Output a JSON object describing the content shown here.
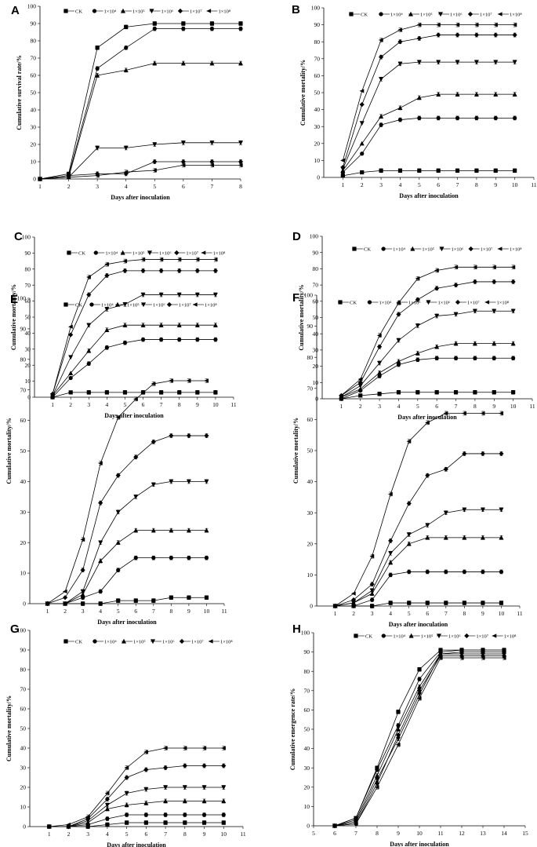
{
  "figure": {
    "legend_labels": [
      "CK",
      "1×10⁴",
      "1×10⁵",
      "1×10⁶",
      "1×10⁷",
      "1×10⁸"
    ]
  },
  "chart_data": [
    {
      "panel": "A",
      "type": "line",
      "xlabel": "Days after inoculation",
      "ylabel": "Cumulative survival rate/%",
      "xlim": [
        1,
        8
      ],
      "ylim": [
        0,
        100
      ],
      "x_ticks": [
        1,
        2,
        3,
        4,
        5,
        6,
        7,
        8
      ],
      "y_ticks": [
        0,
        10,
        20,
        30,
        40,
        50,
        60,
        70,
        80,
        90,
        100
      ],
      "x": [
        1,
        2,
        3,
        4,
        5,
        6,
        7,
        8
      ],
      "series": [
        {
          "name": "CK",
          "values": [
            0,
            3,
            76,
            88,
            90,
            90,
            90,
            90
          ]
        },
        {
          "name": "1×10⁴",
          "values": [
            0,
            2,
            64,
            76,
            87,
            87,
            87,
            87
          ]
        },
        {
          "name": "1×10⁵",
          "values": [
            0,
            1,
            60,
            63,
            67,
            67,
            67,
            67
          ]
        },
        {
          "name": "1×10⁶",
          "values": [
            0,
            1,
            18,
            18,
            20,
            21,
            21,
            21
          ]
        },
        {
          "name": "1×10⁷",
          "values": [
            0,
            2,
            3,
            3,
            10,
            10,
            10,
            10
          ]
        },
        {
          "name": "1×10⁸",
          "values": [
            0,
            1,
            2,
            4,
            5,
            8,
            8,
            8
          ]
        }
      ]
    },
    {
      "panel": "B",
      "type": "line",
      "xlabel": "Days after inoculation",
      "ylabel": "Cumulative mortality/%",
      "xlim": [
        0,
        11
      ],
      "ylim": [
        0,
        100
      ],
      "x_ticks": [
        1,
        2,
        3,
        4,
        5,
        6,
        7,
        8,
        9,
        10,
        11
      ],
      "y_ticks": [
        0,
        10,
        20,
        30,
        40,
        50,
        60,
        70,
        80,
        90,
        100
      ],
      "x": [
        1,
        2,
        3,
        4,
        5,
        6,
        7,
        8,
        9,
        10
      ],
      "series": [
        {
          "name": "CK",
          "values": [
            1,
            3,
            4,
            4,
            4,
            4,
            4,
            4,
            4,
            4
          ]
        },
        {
          "name": "1×10⁴",
          "values": [
            3,
            14,
            31,
            34,
            35,
            35,
            35,
            35,
            35,
            35
          ]
        },
        {
          "name": "1×10⁵",
          "values": [
            4,
            20,
            36,
            41,
            47,
            49,
            49,
            49,
            49,
            49
          ]
        },
        {
          "name": "1×10⁶",
          "values": [
            5,
            32,
            58,
            67,
            68,
            68,
            68,
            68,
            68,
            68
          ]
        },
        {
          "name": "1×10⁷",
          "values": [
            6,
            43,
            71,
            80,
            82,
            84,
            84,
            84,
            84,
            84
          ]
        },
        {
          "name": "1×10⁸",
          "values": [
            10,
            51,
            81,
            87,
            90,
            90,
            90,
            90,
            90,
            90
          ]
        }
      ]
    },
    {
      "panel": "C",
      "type": "line",
      "xlabel": "Days after inoculation",
      "ylabel": "Cumulative mortality/%",
      "xlim": [
        0,
        11
      ],
      "ylim": [
        0,
        100
      ],
      "x_ticks": [
        1,
        2,
        3,
        4,
        5,
        6,
        7,
        8,
        9,
        10,
        11
      ],
      "y_ticks": [
        0,
        10,
        20,
        30,
        40,
        50,
        60,
        70,
        80,
        90,
        100
      ],
      "x": [
        1,
        2,
        3,
        4,
        5,
        6,
        7,
        8,
        9,
        10
      ],
      "series": [
        {
          "name": "CK",
          "values": [
            0,
            3,
            3,
            3,
            3,
            3,
            3,
            3,
            3,
            3
          ]
        },
        {
          "name": "1×10⁴",
          "values": [
            0,
            12,
            21,
            31,
            34,
            36,
            36,
            36,
            36,
            36
          ]
        },
        {
          "name": "1×10⁵",
          "values": [
            1,
            15,
            29,
            42,
            45,
            45,
            45,
            45,
            45,
            45
          ]
        },
        {
          "name": "1×10⁶",
          "values": [
            1,
            25,
            45,
            55,
            58,
            64,
            64,
            64,
            64,
            64
          ]
        },
        {
          "name": "1×10⁷",
          "values": [
            2,
            39,
            64,
            76,
            79,
            79,
            79,
            79,
            79,
            79
          ]
        },
        {
          "name": "1×10⁸",
          "values": [
            2,
            44,
            75,
            83,
            85,
            86,
            86,
            86,
            86,
            86
          ]
        }
      ]
    },
    {
      "panel": "D",
      "type": "line",
      "xlabel": "Days after inoculation",
      "ylabel": "Cumulative mortality/%",
      "xlim": [
        0,
        11
      ],
      "ylim": [
        0,
        100
      ],
      "x_ticks": [
        1,
        2,
        3,
        4,
        5,
        6,
        7,
        8,
        9,
        10,
        11
      ],
      "y_ticks": [
        0,
        10,
        20,
        30,
        40,
        50,
        60,
        70,
        80,
        90,
        100
      ],
      "x": [
        1,
        2,
        3,
        4,
        5,
        6,
        7,
        8,
        9,
        10
      ],
      "series": [
        {
          "name": "CK",
          "values": [
            0,
            2,
            3,
            4,
            4,
            4,
            4,
            4,
            4,
            4
          ]
        },
        {
          "name": "1×10⁴",
          "values": [
            0,
            5,
            14,
            21,
            24,
            25,
            25,
            25,
            25,
            25
          ]
        },
        {
          "name": "1×10⁵",
          "values": [
            1,
            6,
            16,
            23,
            28,
            32,
            34,
            34,
            34,
            34
          ]
        },
        {
          "name": "1×10⁶",
          "values": [
            1,
            8,
            22,
            36,
            45,
            51,
            52,
            54,
            54,
            54
          ]
        },
        {
          "name": "1×10⁷",
          "values": [
            2,
            10,
            32,
            52,
            61,
            68,
            70,
            72,
            72,
            72
          ]
        },
        {
          "name": "1×10⁸",
          "values": [
            2,
            12,
            39,
            59,
            74,
            79,
            81,
            81,
            81,
            81
          ]
        }
      ]
    },
    {
      "panel": "E",
      "type": "line",
      "xlabel": "Days after inoculation",
      "ylabel": "Cumulative mortality/%",
      "xlim": [
        0,
        11
      ],
      "ylim": [
        0,
        100
      ],
      "x_ticks": [
        1,
        2,
        3,
        4,
        5,
        6,
        7,
        8,
        9,
        10,
        11
      ],
      "y_ticks": [
        0,
        10,
        20,
        30,
        40,
        50,
        60,
        70,
        80,
        90,
        100
      ],
      "x": [
        1,
        2,
        3,
        4,
        5,
        6,
        7,
        8,
        9,
        10
      ],
      "series": [
        {
          "name": "CK",
          "values": [
            0,
            0,
            0,
            0,
            1,
            1,
            1,
            2,
            2,
            2
          ]
        },
        {
          "name": "1×10⁴",
          "values": [
            0,
            0,
            2,
            4,
            11,
            15,
            15,
            15,
            15,
            15
          ]
        },
        {
          "name": "1×10⁵",
          "values": [
            0,
            0,
            3,
            14,
            20,
            24,
            24,
            24,
            24,
            24
          ]
        },
        {
          "name": "1×10⁶",
          "values": [
            0,
            0,
            4,
            20,
            30,
            35,
            39,
            40,
            40,
            40
          ]
        },
        {
          "name": "1×10⁷",
          "values": [
            0,
            2,
            11,
            33,
            42,
            48,
            53,
            55,
            55,
            55
          ]
        },
        {
          "name": "1×10⁸",
          "values": [
            0,
            4,
            21,
            46,
            61,
            67,
            72,
            73,
            73,
            73
          ]
        }
      ]
    },
    {
      "panel": "F",
      "type": "line",
      "xlabel": "Days after inoculation",
      "ylabel": "Cumulative mortality/%",
      "xlim": [
        0,
        11
      ],
      "ylim": [
        0,
        100
      ],
      "x_ticks": [
        1,
        2,
        3,
        4,
        5,
        6,
        7,
        8,
        9,
        10,
        11
      ],
      "y_ticks": [
        0,
        10,
        20,
        30,
        40,
        50,
        60,
        70,
        80,
        90,
        100
      ],
      "x": [
        1,
        2,
        3,
        4,
        5,
        6,
        7,
        8,
        9,
        10
      ],
      "series": [
        {
          "name": "CK",
          "values": [
            0,
            0,
            0,
            1,
            1,
            1,
            1,
            1,
            1,
            1
          ]
        },
        {
          "name": "1×10⁴",
          "values": [
            0,
            0,
            2,
            10,
            11,
            11,
            11,
            11,
            11,
            11
          ]
        },
        {
          "name": "1×10⁵",
          "values": [
            0,
            1,
            4,
            14,
            20,
            22,
            22,
            22,
            22,
            22
          ]
        },
        {
          "name": "1×10⁶",
          "values": [
            0,
            1,
            5,
            17,
            23,
            26,
            30,
            31,
            31,
            31
          ]
        },
        {
          "name": "1×10⁷",
          "values": [
            0,
            2,
            7,
            21,
            33,
            42,
            44,
            49,
            49,
            49
          ]
        },
        {
          "name": "1×10⁸",
          "values": [
            0,
            4,
            16,
            36,
            53,
            59,
            62,
            62,
            62,
            62
          ]
        }
      ]
    },
    {
      "panel": "G",
      "type": "line",
      "xlabel": "Days after inoculation",
      "ylabel": "Cumulative mortality/%",
      "xlim": [
        0,
        11
      ],
      "ylim": [
        0,
        100
      ],
      "x_ticks": [
        1,
        2,
        3,
        4,
        5,
        6,
        7,
        8,
        9,
        10,
        11
      ],
      "y_ticks": [
        0,
        10,
        20,
        30,
        40,
        50,
        60,
        70,
        80,
        90,
        100
      ],
      "x": [
        1,
        2,
        3,
        4,
        5,
        6,
        7,
        8,
        9,
        10
      ],
      "series": [
        {
          "name": "CK",
          "values": [
            0,
            0,
            0,
            1,
            2,
            2,
            2,
            2,
            2,
            2
          ]
        },
        {
          "name": "1×10⁴",
          "values": [
            0,
            0,
            1,
            4,
            6,
            6,
            6,
            6,
            6,
            6
          ]
        },
        {
          "name": "1×10⁵",
          "values": [
            0,
            0,
            2,
            9,
            11,
            12,
            13,
            13,
            13,
            13
          ]
        },
        {
          "name": "1×10⁶",
          "values": [
            0,
            0,
            3,
            11,
            17,
            19,
            20,
            20,
            20,
            20
          ]
        },
        {
          "name": "1×10⁷",
          "values": [
            0,
            0,
            4,
            14,
            25,
            29,
            30,
            31,
            31,
            31
          ]
        },
        {
          "name": "1×10⁸",
          "values": [
            0,
            1,
            5,
            17,
            30,
            38,
            40,
            40,
            40,
            40
          ]
        }
      ]
    },
    {
      "panel": "H",
      "type": "line",
      "xlabel": "Days after inoculation",
      "ylabel": "Cumulative emergence rate/%",
      "xlim": [
        5,
        15
      ],
      "ylim": [
        0,
        100
      ],
      "x_ticks": [
        5,
        6,
        7,
        8,
        9,
        10,
        11,
        12,
        13,
        14,
        15
      ],
      "y_ticks": [
        0,
        10,
        20,
        30,
        40,
        50,
        60,
        70,
        80,
        90,
        100
      ],
      "x": [
        6,
        7,
        8,
        9,
        10,
        11,
        12,
        13,
        14
      ],
      "series": [
        {
          "name": "CK",
          "values": [
            0,
            4,
            30,
            59,
            81,
            91,
            91,
            91,
            91
          ]
        },
        {
          "name": "1×10⁴",
          "values": [
            0,
            4,
            29,
            52,
            76,
            90,
            91,
            91,
            91
          ]
        },
        {
          "name": "1×10⁵",
          "values": [
            0,
            3,
            26,
            50,
            72,
            89,
            90,
            90,
            90
          ]
        },
        {
          "name": "1×10⁶",
          "values": [
            0,
            2,
            24,
            45,
            68,
            89,
            89,
            89,
            89
          ]
        },
        {
          "name": "1×10⁷",
          "values": [
            0,
            1,
            22,
            47,
            70,
            88,
            88,
            88,
            88
          ]
        },
        {
          "name": "1×10⁸",
          "values": [
            0,
            1,
            20,
            42,
            66,
            87,
            87,
            87,
            87
          ]
        }
      ]
    }
  ]
}
